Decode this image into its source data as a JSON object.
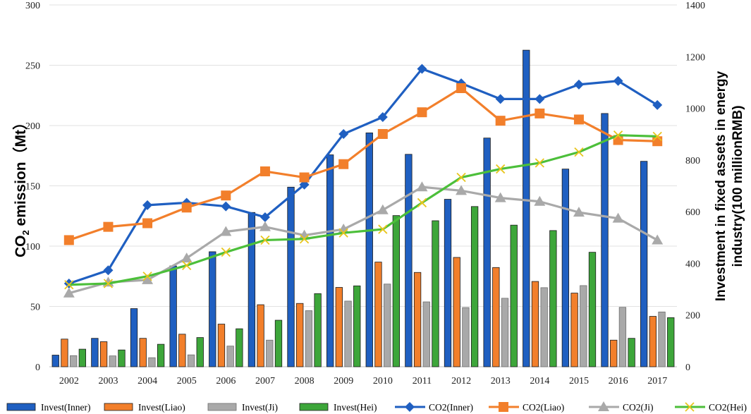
{
  "chart_data": {
    "type": "bar+line",
    "categories": [
      "2002",
      "2003",
      "2004",
      "2005",
      "2006",
      "2007",
      "2008",
      "2009",
      "2010",
      "2011",
      "2012",
      "2013",
      "2014",
      "2015",
      "2016",
      "2017"
    ],
    "ylabel_left_main": "CO",
    "ylabel_left_sub": "2",
    "ylabel_left_rest": " emission（Mt）",
    "ylabel_right_line1": "Investment in fixed assets in energy",
    "ylabel_right_line2": "industry(100 millionRMB)",
    "ylim_left": [
      0,
      300
    ],
    "ylim_right": [
      0,
      1400
    ],
    "yticks_left": [
      "0",
      "50",
      "100",
      "150",
      "200",
      "250",
      "300"
    ],
    "yticks_right": [
      "0",
      "200",
      "400",
      "600",
      "800",
      "1000",
      "1200",
      "1400"
    ],
    "bar_series": [
      {
        "name": "Invest(Inner)",
        "color": "#1f5fc1",
        "values": [
          45,
          110,
          225,
          390,
          445,
          597,
          695,
          820,
          905,
          822,
          648,
          885,
          1225,
          765,
          980,
          795
        ]
      },
      {
        "name": "Invest(Liao)",
        "color": "#f27f2b",
        "values": [
          107,
          97,
          110,
          126,
          165,
          240,
          245,
          307,
          405,
          365,
          423,
          384,
          330,
          285,
          103,
          195
        ]
      },
      {
        "name": "Invest(Ji)",
        "color": "#a9a9a9",
        "values": [
          43,
          42,
          35,
          46,
          80,
          103,
          217,
          254,
          320,
          251,
          229,
          265,
          306,
          314,
          230,
          212
        ]
      },
      {
        "name": "Invest(Hei)",
        "color": "#3da63a",
        "values": [
          68,
          65,
          87,
          113,
          147,
          180,
          283,
          313,
          585,
          565,
          620,
          548,
          527,
          443,
          110,
          190
        ]
      }
    ],
    "line_series": [
      {
        "name": "CO2(Inner)",
        "color": "#1f5fc1",
        "marker": "diamond",
        "values": [
          69,
          80,
          134,
          136,
          133,
          124,
          151,
          193,
          207,
          247,
          235,
          222,
          222,
          234,
          237,
          217
        ]
      },
      {
        "name": "CO2(Liao)",
        "color": "#f27f2b",
        "marker": "square",
        "values": [
          105,
          116,
          119,
          132,
          142,
          162,
          157,
          168,
          193,
          211,
          231,
          204,
          210,
          205,
          188,
          187
        ]
      },
      {
        "name": "CO2(Ji)",
        "color": "#a9a9a9",
        "marker": "triangle",
        "values": [
          61,
          70,
          72,
          90,
          112,
          116,
          109,
          114,
          130,
          149,
          146,
          140,
          137,
          128,
          123,
          105
        ]
      },
      {
        "name": "CO2(Hei)",
        "color": "#4cbf3a",
        "marker": "x",
        "values": [
          68,
          69,
          75,
          84,
          95,
          105,
          106,
          111,
          114,
          136,
          157,
          164,
          169,
          178,
          192,
          191
        ]
      }
    ],
    "legend": [
      "Invest(Inner)",
      "Invest(Liao)",
      "Invest(Ji)",
      "Invest(Hei)",
      "CO2(Inner)",
      "CO2(Liao)",
      "CO2(Ji)",
      "CO2(Hei)"
    ],
    "legend_position": "bottom",
    "grid": true
  }
}
